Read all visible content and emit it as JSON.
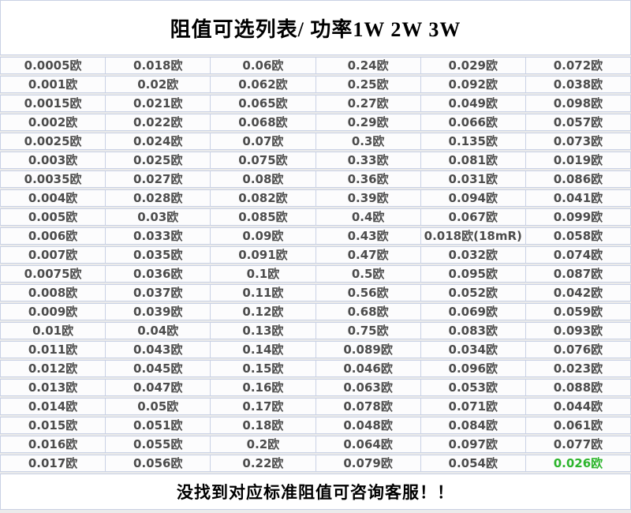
{
  "page": {
    "title": "阻值可选列表/ 功率1W 2W 3W",
    "footer": "没找到对应标准阻值可咨询客服！！"
  },
  "colors": {
    "background": "#ebebeb",
    "cell_background": "#fcfcfd",
    "grid_border": "#c9d1e4",
    "cell_text": "#4c4c4c",
    "title_text": "#000000",
    "highlight_text": "#2db52d"
  },
  "table": {
    "columns": 6,
    "unit": "欧",
    "highlight_cell": {
      "row_index": 21,
      "col_index": 5
    },
    "rows": [
      [
        "0.0005欧",
        "0.018欧",
        "0.06欧",
        "0.24欧",
        "0.029欧",
        "0.072欧"
      ],
      [
        "0.001欧",
        "0.02欧",
        "0.062欧",
        "0.25欧",
        "0.092欧",
        "0.038欧"
      ],
      [
        "0.0015欧",
        "0.021欧",
        "0.065欧",
        "0.27欧",
        "0.049欧",
        "0.098欧"
      ],
      [
        "0.002欧",
        "0.022欧",
        "0.068欧",
        "0.29欧",
        "0.066欧",
        "0.057欧"
      ],
      [
        "0.0025欧",
        "0.024欧",
        "0.07欧",
        "0.3欧",
        "0.135欧",
        "0.073欧"
      ],
      [
        "0.003欧",
        "0.025欧",
        "0.075欧",
        "0.33欧",
        "0.081欧",
        "0.019欧"
      ],
      [
        "0.0035欧",
        "0.027欧",
        "0.08欧",
        "0.36欧",
        "0.031欧",
        "0.086欧"
      ],
      [
        "0.004欧",
        "0.028欧",
        "0.082欧",
        "0.39欧",
        "0.094欧",
        "0.041欧"
      ],
      [
        "0.005欧",
        "0.03欧",
        "0.085欧",
        "0.4欧",
        "0.067欧",
        "0.099欧"
      ],
      [
        "0.006欧",
        "0.033欧",
        "0.09欧",
        "0.43欧",
        "0.018欧(18mR)",
        "0.058欧"
      ],
      [
        "0.007欧",
        "0.035欧",
        "0.091欧",
        "0.47欧",
        "0.032欧",
        "0.074欧"
      ],
      [
        "0.0075欧",
        "0.036欧",
        "0.1欧",
        "0.5欧",
        "0.095欧",
        "0.087欧"
      ],
      [
        "0.008欧",
        "0.037欧",
        "0.11欧",
        "0.56欧",
        "0.052欧",
        "0.042欧"
      ],
      [
        "0.009欧",
        "0.039欧",
        "0.12欧",
        "0.68欧",
        "0.069欧",
        "0.059欧"
      ],
      [
        "0.01欧",
        "0.04欧",
        "0.13欧",
        "0.75欧",
        "0.083欧",
        "0.093欧"
      ],
      [
        "0.011欧",
        "0.043欧",
        "0.14欧",
        "0.089欧",
        "0.034欧",
        "0.076欧"
      ],
      [
        "0.012欧",
        "0.045欧",
        "0.15欧",
        "0.046欧",
        "0.096欧",
        "0.023欧"
      ],
      [
        "0.013欧",
        "0.047欧",
        "0.16欧",
        "0.063欧",
        "0.053欧",
        "0.088欧"
      ],
      [
        "0.014欧",
        "0.05欧",
        "0.17欧",
        "0.078欧",
        "0.071欧",
        "0.044欧"
      ],
      [
        "0.015欧",
        "0.051欧",
        "0.18欧",
        "0.048欧",
        "0.084欧",
        "0.061欧"
      ],
      [
        "0.016欧",
        "0.055欧",
        "0.2欧",
        "0.064欧",
        "0.097欧",
        "0.077欧"
      ],
      [
        "0.017欧",
        "0.056欧",
        "0.22欧",
        "0.079欧",
        "0.054欧",
        "0.026欧"
      ]
    ]
  }
}
